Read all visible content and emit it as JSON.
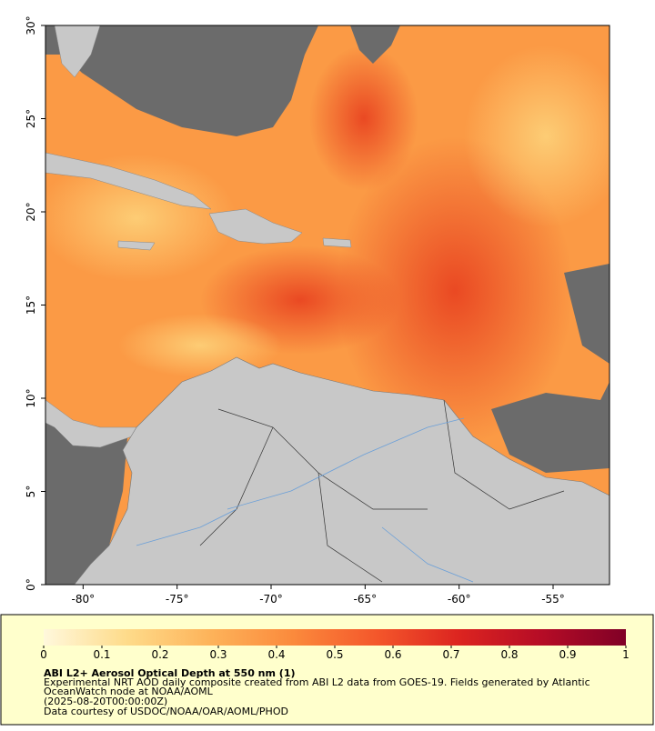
{
  "chart_data": {
    "type": "map",
    "xlim": [
      -82,
      -52
    ],
    "ylim": [
      0,
      30
    ],
    "xticks": [
      {
        "value": -80,
        "label": "-80°"
      },
      {
        "value": -75,
        "label": "-75°"
      },
      {
        "value": -70,
        "label": "-70°"
      },
      {
        "value": -65,
        "label": "-65°"
      },
      {
        "value": -60,
        "label": "-60°"
      },
      {
        "value": -55,
        "label": "-55°"
      }
    ],
    "yticks": [
      {
        "value": 0,
        "label": "0°"
      },
      {
        "value": 5,
        "label": "5°"
      },
      {
        "value": 10,
        "label": "10°"
      },
      {
        "value": 15,
        "label": "15°"
      },
      {
        "value": 20,
        "label": "20°"
      },
      {
        "value": 25,
        "label": "25°"
      },
      {
        "value": 30,
        "label": "30°"
      }
    ],
    "colorbar": {
      "lim": [
        0,
        1
      ],
      "ticks": [
        0,
        0.1,
        0.2,
        0.3,
        0.4,
        0.5,
        0.6,
        0.7,
        0.8,
        0.9,
        1
      ],
      "colormap": [
        "#fff8dc",
        "#fedb8a",
        "#fdb35a",
        "#fb8a3c",
        "#f4572b",
        "#dc2420",
        "#b50c26",
        "#800026"
      ]
    },
    "title": "ABI L2+ Aerosol Optical Depth at 550 nm (1)",
    "description": [
      "Experimental NRT AOD daily composite created from ABI L2 data from GOES-19. Fields generated by Atlantic",
      "OceanWatch node at NOAA/AOML"
    ],
    "time": "(2025-08-20T00:00:00Z)",
    "credit": "Data courtesy of USDOC/NOAA/OAR/AOML/PHOD"
  }
}
